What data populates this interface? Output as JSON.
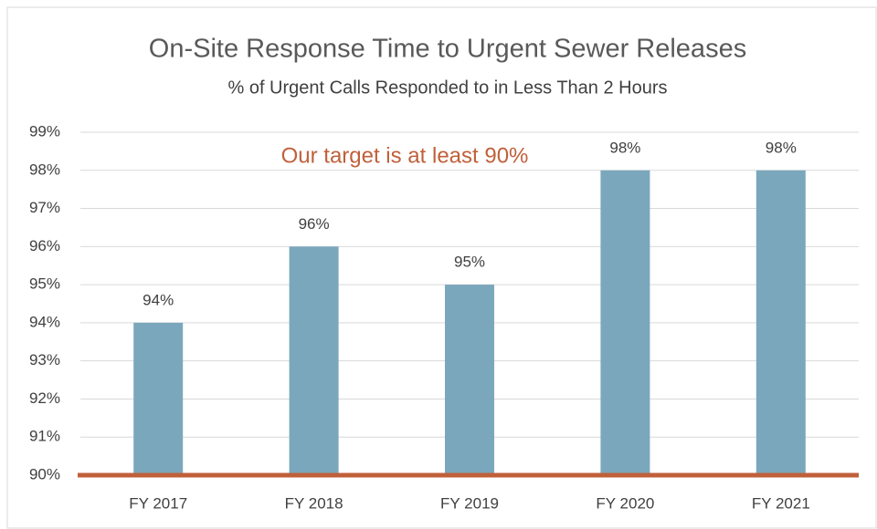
{
  "chart_data": {
    "type": "bar",
    "title": "On-Site Response Time to Urgent Sewer Releases",
    "subtitle": "% of Urgent Calls Responded to in Less Than 2 Hours",
    "annotation": "Our target is at least 90%",
    "categories": [
      "FY 2017",
      "FY 2018",
      "FY 2019",
      "FY 2020",
      "FY 2021"
    ],
    "values": [
      94,
      96,
      95,
      98,
      98
    ],
    "value_labels": [
      "94%",
      "96%",
      "95%",
      "98%",
      "98%"
    ],
    "color": "#7ba7bd",
    "target_line": {
      "value": 90,
      "color": "#c0603a"
    },
    "ylim": [
      90,
      99
    ],
    "yticks": [
      {
        "value": 90,
        "label": "90%"
      },
      {
        "value": 91,
        "label": "91%"
      },
      {
        "value": 92,
        "label": "92%"
      },
      {
        "value": 93,
        "label": "93%"
      },
      {
        "value": 94,
        "label": "94%"
      },
      {
        "value": 95,
        "label": "95%"
      },
      {
        "value": 96,
        "label": "96%"
      },
      {
        "value": 97,
        "label": "97%"
      },
      {
        "value": 98,
        "label": "98%"
      },
      {
        "value": 99,
        "label": "99%"
      }
    ],
    "grid": true
  }
}
